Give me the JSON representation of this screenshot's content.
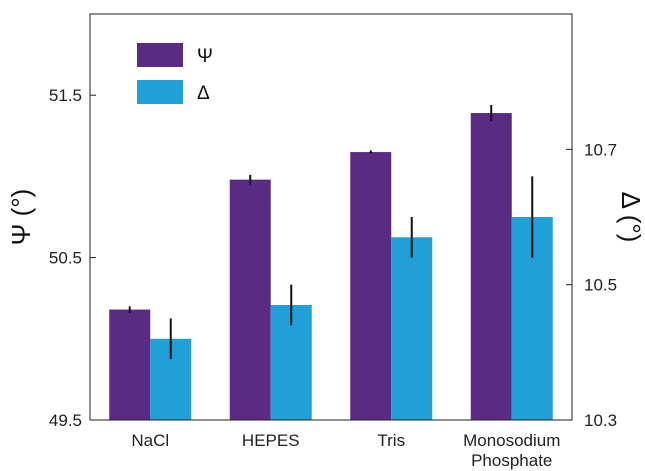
{
  "chart_data": {
    "type": "bar",
    "categories": [
      [
        "NaCl"
      ],
      [
        "HEPES"
      ],
      [
        "Tris"
      ],
      [
        "Monosodium",
        "Phosphate"
      ]
    ],
    "series": [
      {
        "name": "Ψ",
        "axis": "left",
        "color": "#5b2a82",
        "values": [
          50.18,
          50.98,
          51.15,
          51.39
        ],
        "errors": [
          0.02,
          0.03,
          0.01,
          0.05
        ]
      },
      {
        "name": "Δ",
        "axis": "right",
        "color": "#1fa0d6",
        "values": [
          10.42,
          10.47,
          10.57,
          10.6
        ],
        "errors": [
          0.03,
          0.03,
          0.03,
          0.06
        ]
      }
    ],
    "ylabel_left": "Ψ (°)",
    "ylabel_right": "Δ (°)",
    "ylim_left": [
      49.5,
      52.0
    ],
    "ylim_right": [
      10.3,
      10.9
    ],
    "yticks_left": [
      "49.5",
      "50.5",
      "51.5"
    ],
    "yticks_left_values": [
      49.5,
      50.5,
      51.5
    ],
    "yticks_right": [
      "10.3",
      "10.5",
      "10.7"
    ],
    "yticks_right_values": [
      10.3,
      10.5,
      10.7
    ],
    "legend": "top-left",
    "grid": false
  }
}
